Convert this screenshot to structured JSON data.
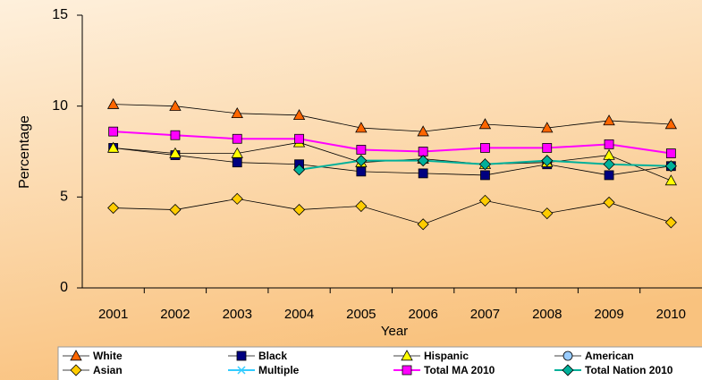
{
  "chart_data": {
    "type": "line",
    "xlabel": "Year",
    "ylabel": "Percentage",
    "categories": [
      "2001",
      "2002",
      "2003",
      "2004",
      "2005",
      "2006",
      "2007",
      "2008",
      "2009",
      "2010"
    ],
    "ylim": [
      0,
      15
    ],
    "yticks": [
      0,
      5,
      10,
      15
    ],
    "grid": false,
    "series": [
      {
        "name": "White",
        "color": "#ff6600",
        "line_color": "#000000",
        "marker": "triangle",
        "values": [
          10.1,
          10.0,
          9.6,
          9.5,
          8.8,
          8.6,
          9.0,
          8.8,
          9.2,
          9.0
        ]
      },
      {
        "name": "Black",
        "color": "#000080",
        "line_color": "#000000",
        "marker": "square",
        "values": [
          7.7,
          7.3,
          6.9,
          6.8,
          6.4,
          6.3,
          6.2,
          6.8,
          6.2,
          6.7
        ]
      },
      {
        "name": "Hispanic",
        "color": "#ffff00",
        "line_color": "#000000",
        "marker": "triangle",
        "values": [
          7.7,
          7.4,
          7.4,
          8.0,
          6.9,
          7.1,
          6.8,
          6.9,
          7.3,
          5.9
        ]
      },
      {
        "name": "American",
        "color": "#99ccff",
        "line_color": "#000000",
        "marker": "circle",
        "values": [
          null,
          null,
          null,
          null,
          null,
          null,
          null,
          null,
          null,
          null
        ]
      },
      {
        "name": "Asian",
        "color": "#ffcc00",
        "line_color": "#000000",
        "marker": "diamond",
        "values": [
          4.4,
          4.3,
          4.9,
          4.3,
          4.5,
          3.5,
          4.8,
          4.1,
          4.7,
          3.6
        ]
      },
      {
        "name": "Multiple",
        "color": "#33ccff",
        "line_color": "#33ccff",
        "marker": "x",
        "values": [
          null,
          null,
          null,
          null,
          null,
          null,
          null,
          null,
          null,
          null
        ]
      },
      {
        "name": "Total MA 2010",
        "color": "#ff00ff",
        "line_color": "#ff00ff",
        "marker": "square",
        "values": [
          8.6,
          8.4,
          8.2,
          8.2,
          7.6,
          7.5,
          7.7,
          7.7,
          7.9,
          7.4
        ]
      },
      {
        "name": "Total Nation 2010",
        "color": "#00b09a",
        "line_color": "#00b09a",
        "marker": "diamond",
        "values": [
          null,
          null,
          null,
          6.5,
          7.0,
          7.0,
          6.8,
          7.0,
          6.8,
          6.7
        ]
      }
    ]
  }
}
